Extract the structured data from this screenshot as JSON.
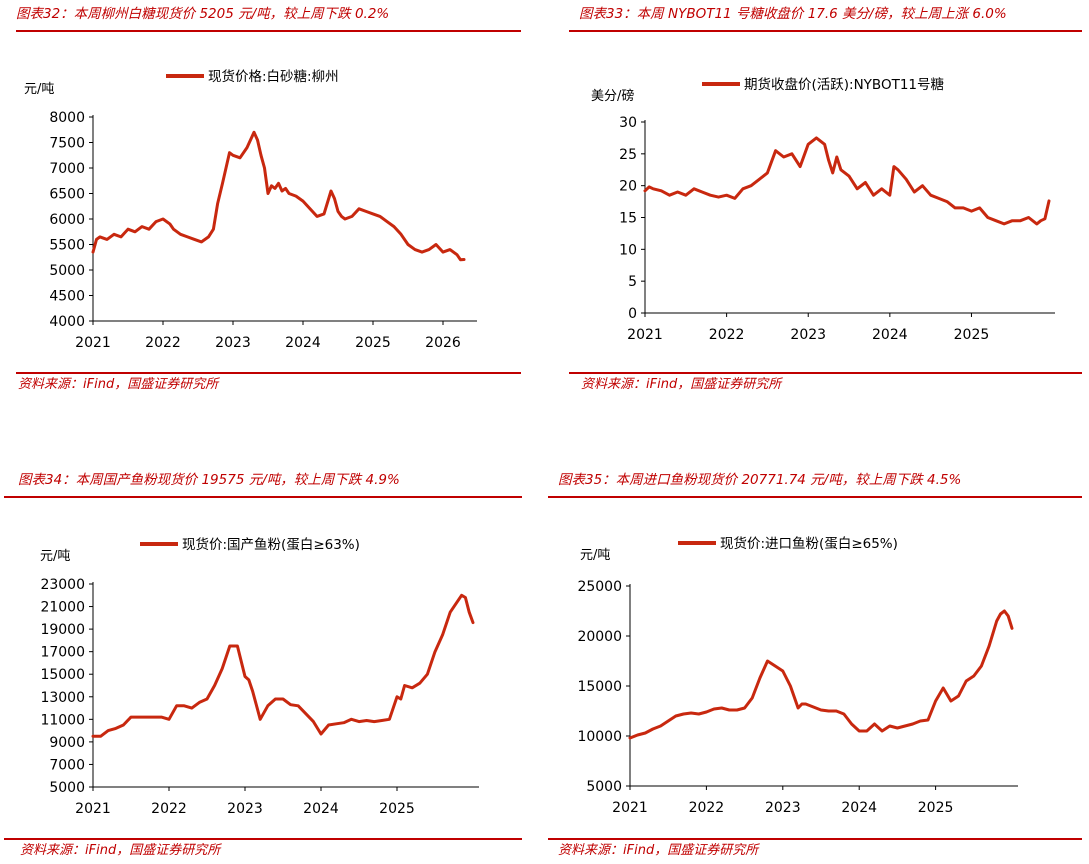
{
  "chart_data": [
    {
      "type": "line",
      "title": "图表32：本周柳州白糖现货价 5205 元/吨，较上周下跌 0.2%",
      "ylabel": "元/吨",
      "legend": "现货价格:白砂糖:柳州",
      "legend_position": "top",
      "source": "资料来源：iFind，国盛证券研究所",
      "x_ticks": [
        "2021",
        "2022",
        "2023",
        "2024",
        "2025",
        "2026"
      ],
      "xlim": [
        2021.0,
        2026.4
      ],
      "ylim": [
        4000,
        8000
      ],
      "y_ticks": [
        4000,
        4500,
        5000,
        5500,
        6000,
        6500,
        7000,
        7500,
        8000
      ],
      "color": "#c8280f",
      "series": [
        {
          "x": [
            2021.0,
            2021.05,
            2021.1,
            2021.2,
            2021.3,
            2021.4,
            2021.5,
            2021.6,
            2021.7,
            2021.8,
            2021.9,
            2022.0,
            2022.1,
            2022.15,
            2022.25,
            2022.35,
            2022.45,
            2022.55,
            2022.65,
            2022.72,
            2022.78,
            2022.85,
            2022.95,
            2023.0,
            2023.1,
            2023.2,
            2023.3,
            2023.35,
            2023.4,
            2023.45,
            2023.5,
            2023.55,
            2023.6,
            2023.65,
            2023.7,
            2023.75,
            2023.8,
            2023.9,
            2024.0,
            2024.1,
            2024.2,
            2024.3,
            2024.4,
            2024.45,
            2024.5,
            2024.55,
            2024.6,
            2024.7,
            2024.8,
            2024.9,
            2025.0,
            2025.1,
            2025.2,
            2025.3,
            2025.4,
            2025.5,
            2025.6,
            2025.7,
            2025.8,
            2025.9,
            2026.0,
            2026.1,
            2026.2,
            2026.25,
            2026.3
          ],
          "y": [
            5350,
            5600,
            5650,
            5600,
            5700,
            5650,
            5800,
            5750,
            5850,
            5800,
            5950,
            6000,
            5900,
            5800,
            5700,
            5650,
            5600,
            5550,
            5650,
            5800,
            6300,
            6700,
            7300,
            7250,
            7200,
            7400,
            7700,
            7550,
            7250,
            7000,
            6500,
            6650,
            6600,
            6700,
            6550,
            6600,
            6500,
            6450,
            6350,
            6200,
            6050,
            6100,
            6550,
            6400,
            6150,
            6050,
            6000,
            6050,
            6200,
            6150,
            6100,
            6050,
            5950,
            5850,
            5700,
            5500,
            5400,
            5350,
            5400,
            5500,
            5350,
            5400,
            5300,
            5200,
            5205
          ]
        }
      ]
    },
    {
      "type": "line",
      "title": "图表33：本周 NYBOT11 号糖收盘价 17.6 美分/磅，较上周上涨 6.0%",
      "ylabel": "美分/磅",
      "legend": "期货收盘价(活跃):NYBOT11号糖",
      "legend_position": "top",
      "source": "资料来源：iFind，国盛证券研究所",
      "x_ticks": [
        "2021",
        "2022",
        "2023",
        "2024",
        "2025"
      ],
      "xlim": [
        2021.0,
        2025.95
      ],
      "ylim": [
        0,
        30
      ],
      "y_ticks": [
        0,
        5,
        10,
        15,
        20,
        25,
        30
      ],
      "color": "#c8280f",
      "series": [
        {
          "x": [
            2021.0,
            2021.05,
            2021.1,
            2021.2,
            2021.3,
            2021.4,
            2021.5,
            2021.6,
            2021.7,
            2021.8,
            2021.9,
            2022.0,
            2022.1,
            2022.2,
            2022.3,
            2022.4,
            2022.5,
            2022.6,
            2022.7,
            2022.8,
            2022.9,
            2023.0,
            2023.1,
            2023.2,
            2023.25,
            2023.3,
            2023.35,
            2023.4,
            2023.5,
            2023.6,
            2023.7,
            2023.8,
            2023.9,
            2024.0,
            2024.05,
            2024.1,
            2024.2,
            2024.3,
            2024.4,
            2024.5,
            2024.6,
            2024.7,
            2024.8,
            2024.9,
            2025.0,
            2025.1,
            2025.2,
            2025.3,
            2025.4,
            2025.5,
            2025.6,
            2025.7,
            2025.8,
            2025.85,
            2025.9,
            2025.95
          ],
          "y": [
            19.2,
            19.8,
            19.5,
            19.2,
            18.5,
            19.0,
            18.5,
            19.5,
            19.0,
            18.5,
            18.2,
            18.5,
            18.0,
            19.5,
            20.0,
            21.0,
            22.0,
            25.5,
            24.5,
            25.0,
            23.0,
            26.5,
            27.5,
            26.5,
            24.0,
            22.0,
            24.5,
            22.5,
            21.5,
            19.5,
            20.5,
            18.5,
            19.5,
            18.5,
            23.0,
            22.5,
            21.0,
            19.0,
            20.0,
            18.5,
            18.0,
            17.5,
            16.5,
            16.5,
            16.0,
            16.5,
            15.0,
            14.5,
            14.0,
            14.5,
            14.5,
            15.0,
            14.0,
            14.5,
            14.8,
            17.6
          ]
        }
      ]
    },
    {
      "type": "line",
      "title": "图表34：本周国产鱼粉现货价 19575 元/吨，较上周下跌 4.9%",
      "ylabel": "元/吨",
      "legend": "现货价:国产鱼粉(蛋白≥63%)",
      "legend_position": "top",
      "source": "资料来源：iFind，国盛证券研究所",
      "x_ticks": [
        "2021",
        "2022",
        "2023",
        "2024",
        "2025"
      ],
      "xlim": [
        2021.0,
        2026.0
      ],
      "ylim": [
        5000,
        23000
      ],
      "y_ticks": [
        5000,
        7000,
        9000,
        11000,
        13000,
        15000,
        17000,
        19000,
        21000,
        23000
      ],
      "color": "#c8280f",
      "series": [
        {
          "x": [
            2021.0,
            2021.1,
            2021.2,
            2021.3,
            2021.4,
            2021.5,
            2021.6,
            2021.7,
            2021.9,
            2022.0,
            2022.1,
            2022.2,
            2022.3,
            2022.4,
            2022.5,
            2022.6,
            2022.7,
            2022.8,
            2022.9,
            2023.0,
            2023.05,
            2023.1,
            2023.2,
            2023.3,
            2023.35,
            2023.4,
            2023.5,
            2023.6,
            2023.7,
            2023.8,
            2023.9,
            2024.0,
            2024.1,
            2024.2,
            2024.3,
            2024.4,
            2024.5,
            2024.6,
            2024.7,
            2024.8,
            2024.9,
            2025.0,
            2025.05,
            2025.1,
            2025.2,
            2025.3,
            2025.4,
            2025.5,
            2025.6,
            2025.7,
            2025.8,
            2025.85,
            2025.9,
            2025.95,
            2026.0
          ],
          "y": [
            9500,
            9500,
            10000,
            10200,
            10500,
            11200,
            11200,
            11200,
            11200,
            11000,
            12200,
            12200,
            12000,
            12500,
            12800,
            14000,
            15500,
            17500,
            17500,
            14800,
            14500,
            13500,
            11000,
            12200,
            12500,
            12800,
            12800,
            12300,
            12200,
            11500,
            10800,
            9700,
            10500,
            10600,
            10700,
            11000,
            10800,
            10900,
            10800,
            10900,
            11000,
            13000,
            12800,
            14000,
            13800,
            14200,
            15000,
            17000,
            18500,
            20500,
            21500,
            22000,
            21800,
            20500,
            19575
          ]
        }
      ]
    },
    {
      "type": "line",
      "title": "图表35：本周进口鱼粉现货价 20771.74 元/吨，较上周下跌 4.5%",
      "ylabel": "元/吨",
      "legend": "现货价:进口鱼粉(蛋白≥65%)",
      "legend_position": "top",
      "source": "资料来源：iFind，国盛证券研究所",
      "x_ticks": [
        "2021",
        "2022",
        "2023",
        "2024",
        "2025"
      ],
      "xlim": [
        2021.0,
        2026.0
      ],
      "ylim": [
        5000,
        25000
      ],
      "y_ticks": [
        5000,
        10000,
        15000,
        20000,
        25000
      ],
      "color": "#c8280f",
      "series": [
        {
          "x": [
            2021.0,
            2021.1,
            2021.2,
            2021.3,
            2021.4,
            2021.5,
            2021.6,
            2021.7,
            2021.8,
            2021.9,
            2022.0,
            2022.1,
            2022.2,
            2022.3,
            2022.4,
            2022.5,
            2022.6,
            2022.7,
            2022.8,
            2022.9,
            2023.0,
            2023.1,
            2023.2,
            2023.25,
            2023.3,
            2023.4,
            2023.5,
            2023.6,
            2023.7,
            2023.8,
            2023.9,
            2024.0,
            2024.1,
            2024.2,
            2024.3,
            2024.4,
            2024.5,
            2024.6,
            2024.7,
            2024.8,
            2024.9,
            2025.0,
            2025.1,
            2025.2,
            2025.3,
            2025.4,
            2025.5,
            2025.6,
            2025.7,
            2025.8,
            2025.85,
            2025.9,
            2025.95,
            2026.0
          ],
          "y": [
            9800,
            10100,
            10300,
            10700,
            11000,
            11500,
            12000,
            12200,
            12300,
            12200,
            12400,
            12700,
            12800,
            12600,
            12600,
            12800,
            13800,
            15800,
            17500,
            17000,
            16500,
            15000,
            12800,
            13200,
            13200,
            12900,
            12600,
            12500,
            12500,
            12200,
            11200,
            10500,
            10500,
            11200,
            10500,
            11000,
            10800,
            11000,
            11200,
            11500,
            11600,
            13500,
            14800,
            13500,
            14000,
            15500,
            16000,
            17000,
            19000,
            21500,
            22200,
            22500,
            22000,
            20772
          ]
        }
      ]
    }
  ]
}
